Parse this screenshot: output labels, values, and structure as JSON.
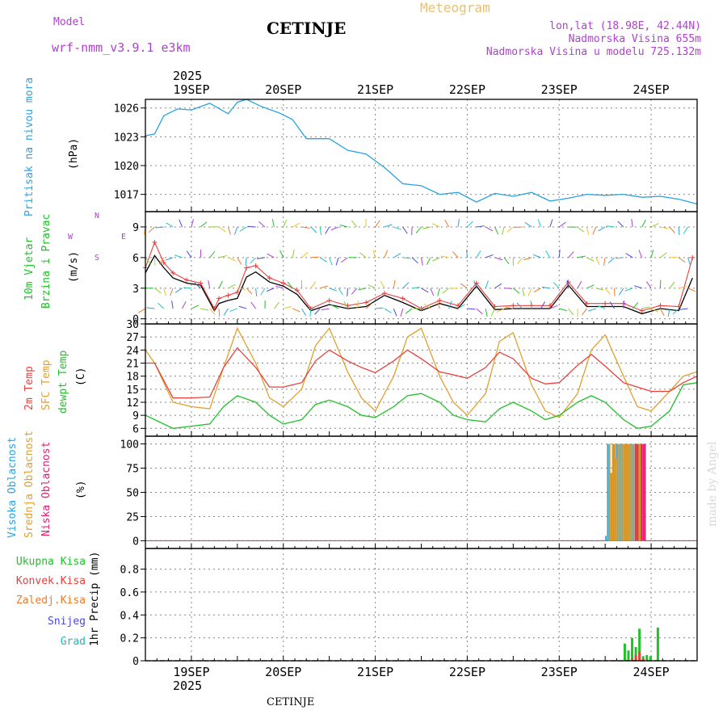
{
  "header": {
    "model_label": "Model",
    "model_name": "wrf-nmm_v3.9.1 e3km",
    "station": "CETINJE",
    "product": "Meteogram",
    "lonlat": "lon,lat (18.98E, 42.44N)",
    "elevation": "Nadmorska Visina 655m",
    "model_elevation": "Nadmorska Visina u modelu 725.132m",
    "year_top": "2025",
    "year_bottom": "2025",
    "footer": "CETINJE",
    "credit": "made by Angel"
  },
  "colors": {
    "pressure": "#29a3e0",
    "temp2m": "#e8403c",
    "sfc": "#e0a030",
    "dew": "#22c02a",
    "high_cloud": "#29a3e0",
    "mid_cloud": "#e0a030",
    "low_cloud": "#e0206e",
    "total_precip": "#22c02a",
    "conv_precip": "#e8403c",
    "frozen_precip": "#f07a2a",
    "snow": "#4a4ae0",
    "hail": "#22b8b0",
    "wind_dir": "#b040d0"
  },
  "axis_labels": {
    "pressure": [
      "Pritisak na nivou mora",
      "(hPa)"
    ],
    "wind": [
      "10m Vjetar",
      "Brzina i Pravac",
      "(m/s)"
    ],
    "wind_dirs": [
      "N",
      "S",
      "W",
      "E"
    ],
    "temp": [
      "2m Temp",
      "SFC Temp",
      "dewpt Temp",
      "(C)"
    ],
    "cloud": [
      "Visoka Oblacnost",
      "Srednja Oblacnost",
      "Niska Oblacnost",
      "(%)"
    ],
    "precip_legend": [
      "Ukupna Kisa",
      "Konvek.Kisa",
      "Zaledj.Kisa",
      "Snijeg",
      "Grad"
    ],
    "precip_axis": [
      "1hr Precip (mm)"
    ]
  },
  "chart_data": [
    {
      "type": "line",
      "name": "pressure",
      "title": "Pritisak na nivou mora",
      "ylabel": "(hPa)",
      "xlim": [
        0,
        6.0
      ],
      "ylim": [
        1015.2,
        1026.9
      ],
      "yticks": [
        1017,
        1020,
        1023,
        1026
      ],
      "x": [
        0,
        0.1,
        0.2,
        0.35,
        0.5,
        0.7,
        0.9,
        1.0,
        1.1,
        1.25,
        1.45,
        1.6,
        1.75,
        2.0,
        2.2,
        2.4,
        2.6,
        2.8,
        3.0,
        3.2,
        3.4,
        3.6,
        3.8,
        4.0,
        4.2,
        4.4,
        4.6,
        4.8,
        5.0,
        5.2,
        5.4,
        5.6,
        5.8,
        6.0
      ],
      "values": [
        1023.1,
        1023.3,
        1025.2,
        1025.9,
        1025.8,
        1026.5,
        1025.4,
        1026.6,
        1026.9,
        1026.2,
        1025.5,
        1024.8,
        1022.8,
        1022.8,
        1021.6,
        1021.2,
        1019.8,
        1018.1,
        1017.9,
        1017.0,
        1017.2,
        1016.2,
        1017.1,
        1016.8,
        1017.2,
        1016.3,
        1016.6,
        1017.0,
        1016.9,
        1017.0,
        1016.7,
        1016.8,
        1016.5,
        1016.0
      ]
    },
    {
      "type": "line",
      "name": "wind",
      "title": "10m Vjetar Brzina i Pravac",
      "ylabel": "(m/s)",
      "xlim": [
        0,
        6.0
      ],
      "ylim": [
        -0.5,
        10.5
      ],
      "yticks": [
        0,
        3,
        6,
        9
      ],
      "x": [
        0,
        0.1,
        0.2,
        0.3,
        0.45,
        0.6,
        0.75,
        0.8,
        0.9,
        1.0,
        1.1,
        1.2,
        1.35,
        1.5,
        1.65,
        1.8,
        2.0,
        2.2,
        2.4,
        2.6,
        2.8,
        3.0,
        3.2,
        3.4,
        3.6,
        3.8,
        4.0,
        4.2,
        4.4,
        4.6,
        4.8,
        5.0,
        5.2,
        5.4,
        5.6,
        5.8,
        5.95
      ],
      "series": [
        {
          "name": "wind_speed",
          "values": [
            4.5,
            6.2,
            5.0,
            4.0,
            3.5,
            3.3,
            0.8,
            1.5,
            1.8,
            2.0,
            4.1,
            4.6,
            3.6,
            3.2,
            2.4,
            0.8,
            1.4,
            1.0,
            1.2,
            2.3,
            1.6,
            0.8,
            1.5,
            1.0,
            3.2,
            0.9,
            1.0,
            1.0,
            1.0,
            3.3,
            1.2,
            1.2,
            1.2,
            0.5,
            1.0,
            0.8,
            4.0
          ]
        },
        {
          "name": "gust",
          "values": [
            5.0,
            7.5,
            5.5,
            4.5,
            3.8,
            3.5,
            1.0,
            2.0,
            2.3,
            2.6,
            5.0,
            5.2,
            4.0,
            3.5,
            2.8,
            1.0,
            1.8,
            1.3,
            1.6,
            2.5,
            2.0,
            1.0,
            1.8,
            1.3,
            3.5,
            1.2,
            1.3,
            1.3,
            1.3,
            3.6,
            1.5,
            1.5,
            1.5,
            0.8,
            1.3,
            1.2,
            6.0
          ]
        }
      ]
    },
    {
      "type": "line",
      "name": "temperature",
      "title": "2m Temp / SFC Temp / dewpt Temp",
      "ylabel": "(C)",
      "xlim": [
        0,
        6.0
      ],
      "ylim": [
        4.2,
        30
      ],
      "yticks": [
        6,
        9,
        12,
        15,
        18,
        21,
        24,
        27,
        30
      ],
      "x": [
        0,
        0.1,
        0.3,
        0.5,
        0.7,
        0.85,
        1.0,
        1.2,
        1.35,
        1.5,
        1.7,
        1.85,
        2.0,
        2.2,
        2.35,
        2.5,
        2.7,
        2.85,
        3.0,
        3.2,
        3.35,
        3.5,
        3.7,
        3.85,
        4.0,
        4.2,
        4.35,
        4.5,
        4.7,
        4.85,
        5.0,
        5.2,
        5.35,
        5.5,
        5.7,
        5.85,
        6.0
      ],
      "series": [
        {
          "name": "2m Temp",
          "values": [
            21,
            21,
            13,
            13,
            13.2,
            20,
            24.5,
            20,
            15.5,
            15.5,
            16.5,
            21.5,
            24,
            21.5,
            20,
            18.8,
            21.5,
            24,
            22,
            19,
            18.3,
            17.5,
            20,
            23.5,
            22,
            17.5,
            16.2,
            16.5,
            20.5,
            23,
            20.3,
            16.5,
            15.5,
            14.5,
            14.5,
            16.5,
            18
          ]
        },
        {
          "name": "SFC Temp",
          "values": [
            24,
            21,
            12,
            11,
            10.5,
            20,
            29,
            21,
            13,
            11,
            15,
            25,
            29,
            19,
            13,
            10,
            18,
            27,
            29,
            18,
            12,
            9,
            14,
            26,
            28,
            16,
            10,
            8.5,
            14,
            24,
            27.5,
            18,
            11,
            10,
            14.5,
            18,
            19
          ]
        },
        {
          "name": "dewpt Temp",
          "values": [
            9,
            8,
            6,
            6.5,
            7,
            11,
            13.5,
            12,
            9,
            7,
            8,
            11.5,
            12.5,
            11,
            9,
            8.5,
            11,
            13.5,
            14,
            12,
            9,
            8,
            7.5,
            10.5,
            12,
            10,
            8,
            9,
            12,
            13.5,
            12,
            8,
            6,
            6.5,
            10,
            16,
            16.5
          ]
        }
      ]
    },
    {
      "type": "bar",
      "name": "clouds",
      "title": "Oblacnost",
      "ylabel": "(%)",
      "xlim": [
        0,
        6.0
      ],
      "ylim": [
        -8,
        108
      ],
      "yticks": [
        0,
        25,
        50,
        75,
        100
      ],
      "x": [
        5.0,
        5.02,
        5.04,
        5.06,
        5.08,
        5.1,
        5.12,
        5.14,
        5.16,
        5.18,
        5.2,
        5.22,
        5.24,
        5.26,
        5.28,
        5.3,
        5.32,
        5.34,
        5.36,
        5.38,
        5.4,
        5.42
      ],
      "series": [
        {
          "name": "Visoka Oblacnost",
          "values": [
            5,
            100,
            100,
            70,
            100,
            100,
            100,
            100,
            100,
            100,
            100,
            100,
            100,
            100,
            100,
            100,
            100,
            100,
            100,
            100,
            100,
            100
          ]
        },
        {
          "name": "Srednja Oblacnost",
          "values": [
            0,
            100,
            70,
            100,
            100,
            85,
            100,
            100,
            100,
            100,
            100,
            100,
            100,
            100,
            100,
            100,
            100,
            100,
            100,
            100,
            0,
            0
          ]
        },
        {
          "name": "Niska Oblacnost",
          "values": [
            0,
            0,
            0,
            0,
            0,
            0,
            0,
            0,
            0,
            0,
            0,
            0,
            0,
            0,
            0,
            100,
            100,
            0,
            100,
            100,
            100,
            0
          ]
        }
      ]
    },
    {
      "type": "bar",
      "name": "precip",
      "title": "1hr Precip",
      "ylabel": "(mm)",
      "xlim": [
        0,
        6.0
      ],
      "ylim": [
        0,
        0.98
      ],
      "yticks": [
        0,
        0.2,
        0.4,
        0.6,
        0.8
      ],
      "ytick_labels": [
        "0",
        "0.2",
        "0.4",
        "0.6",
        "0.8"
      ],
      "x": [
        5.2,
        5.24,
        5.28,
        5.32,
        5.36,
        5.4,
        5.44,
        5.48,
        5.52,
        5.56
      ],
      "series": [
        {
          "name": "Ukupna Kisa",
          "values": [
            0.15,
            0.09,
            0.2,
            0.12,
            0.28,
            0.04,
            0.05,
            0.04,
            0.0,
            0.29
          ]
        },
        {
          "name": "Konvek.Kisa",
          "values": [
            0.0,
            0.0,
            0.02,
            0.05,
            0.08,
            0.02,
            0.0,
            0.0,
            0.0,
            0.0
          ]
        }
      ]
    }
  ],
  "x_axis": {
    "day_labels": [
      "19SEP",
      "20SEP",
      "21SEP",
      "22SEP",
      "23SEP",
      "24SEP"
    ],
    "day_positions": [
      0.5,
      1.5,
      2.5,
      3.5,
      4.5,
      5.5
    ]
  }
}
